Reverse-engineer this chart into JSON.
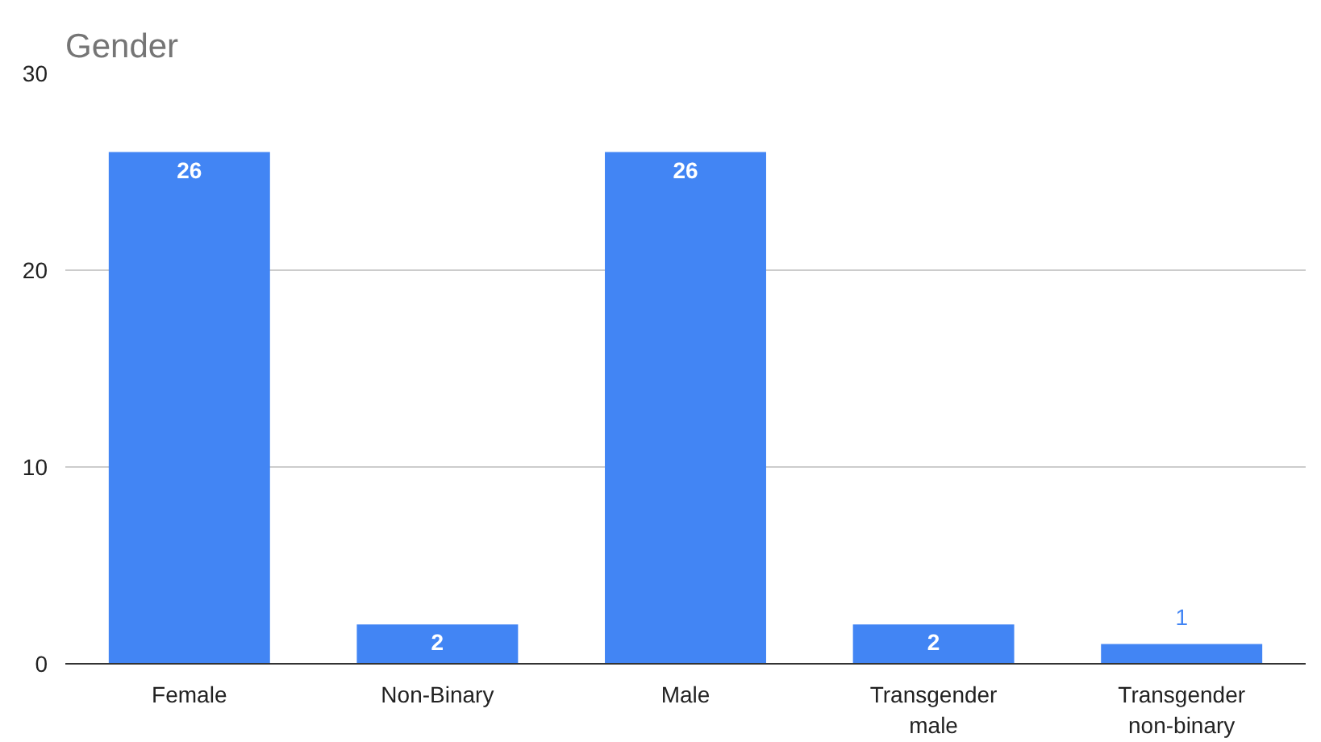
{
  "chart_data": {
    "type": "bar",
    "title": "Gender",
    "categories": [
      "Female",
      "Non-Binary",
      "Male",
      "Transgender male",
      "Transgender non-binary"
    ],
    "values": [
      26,
      2,
      26,
      2,
      1
    ],
    "color": "#4285f4",
    "ylim": [
      0,
      30
    ],
    "yticks": [
      0,
      10,
      20,
      30
    ],
    "grid": "y",
    "data_labels": true
  }
}
